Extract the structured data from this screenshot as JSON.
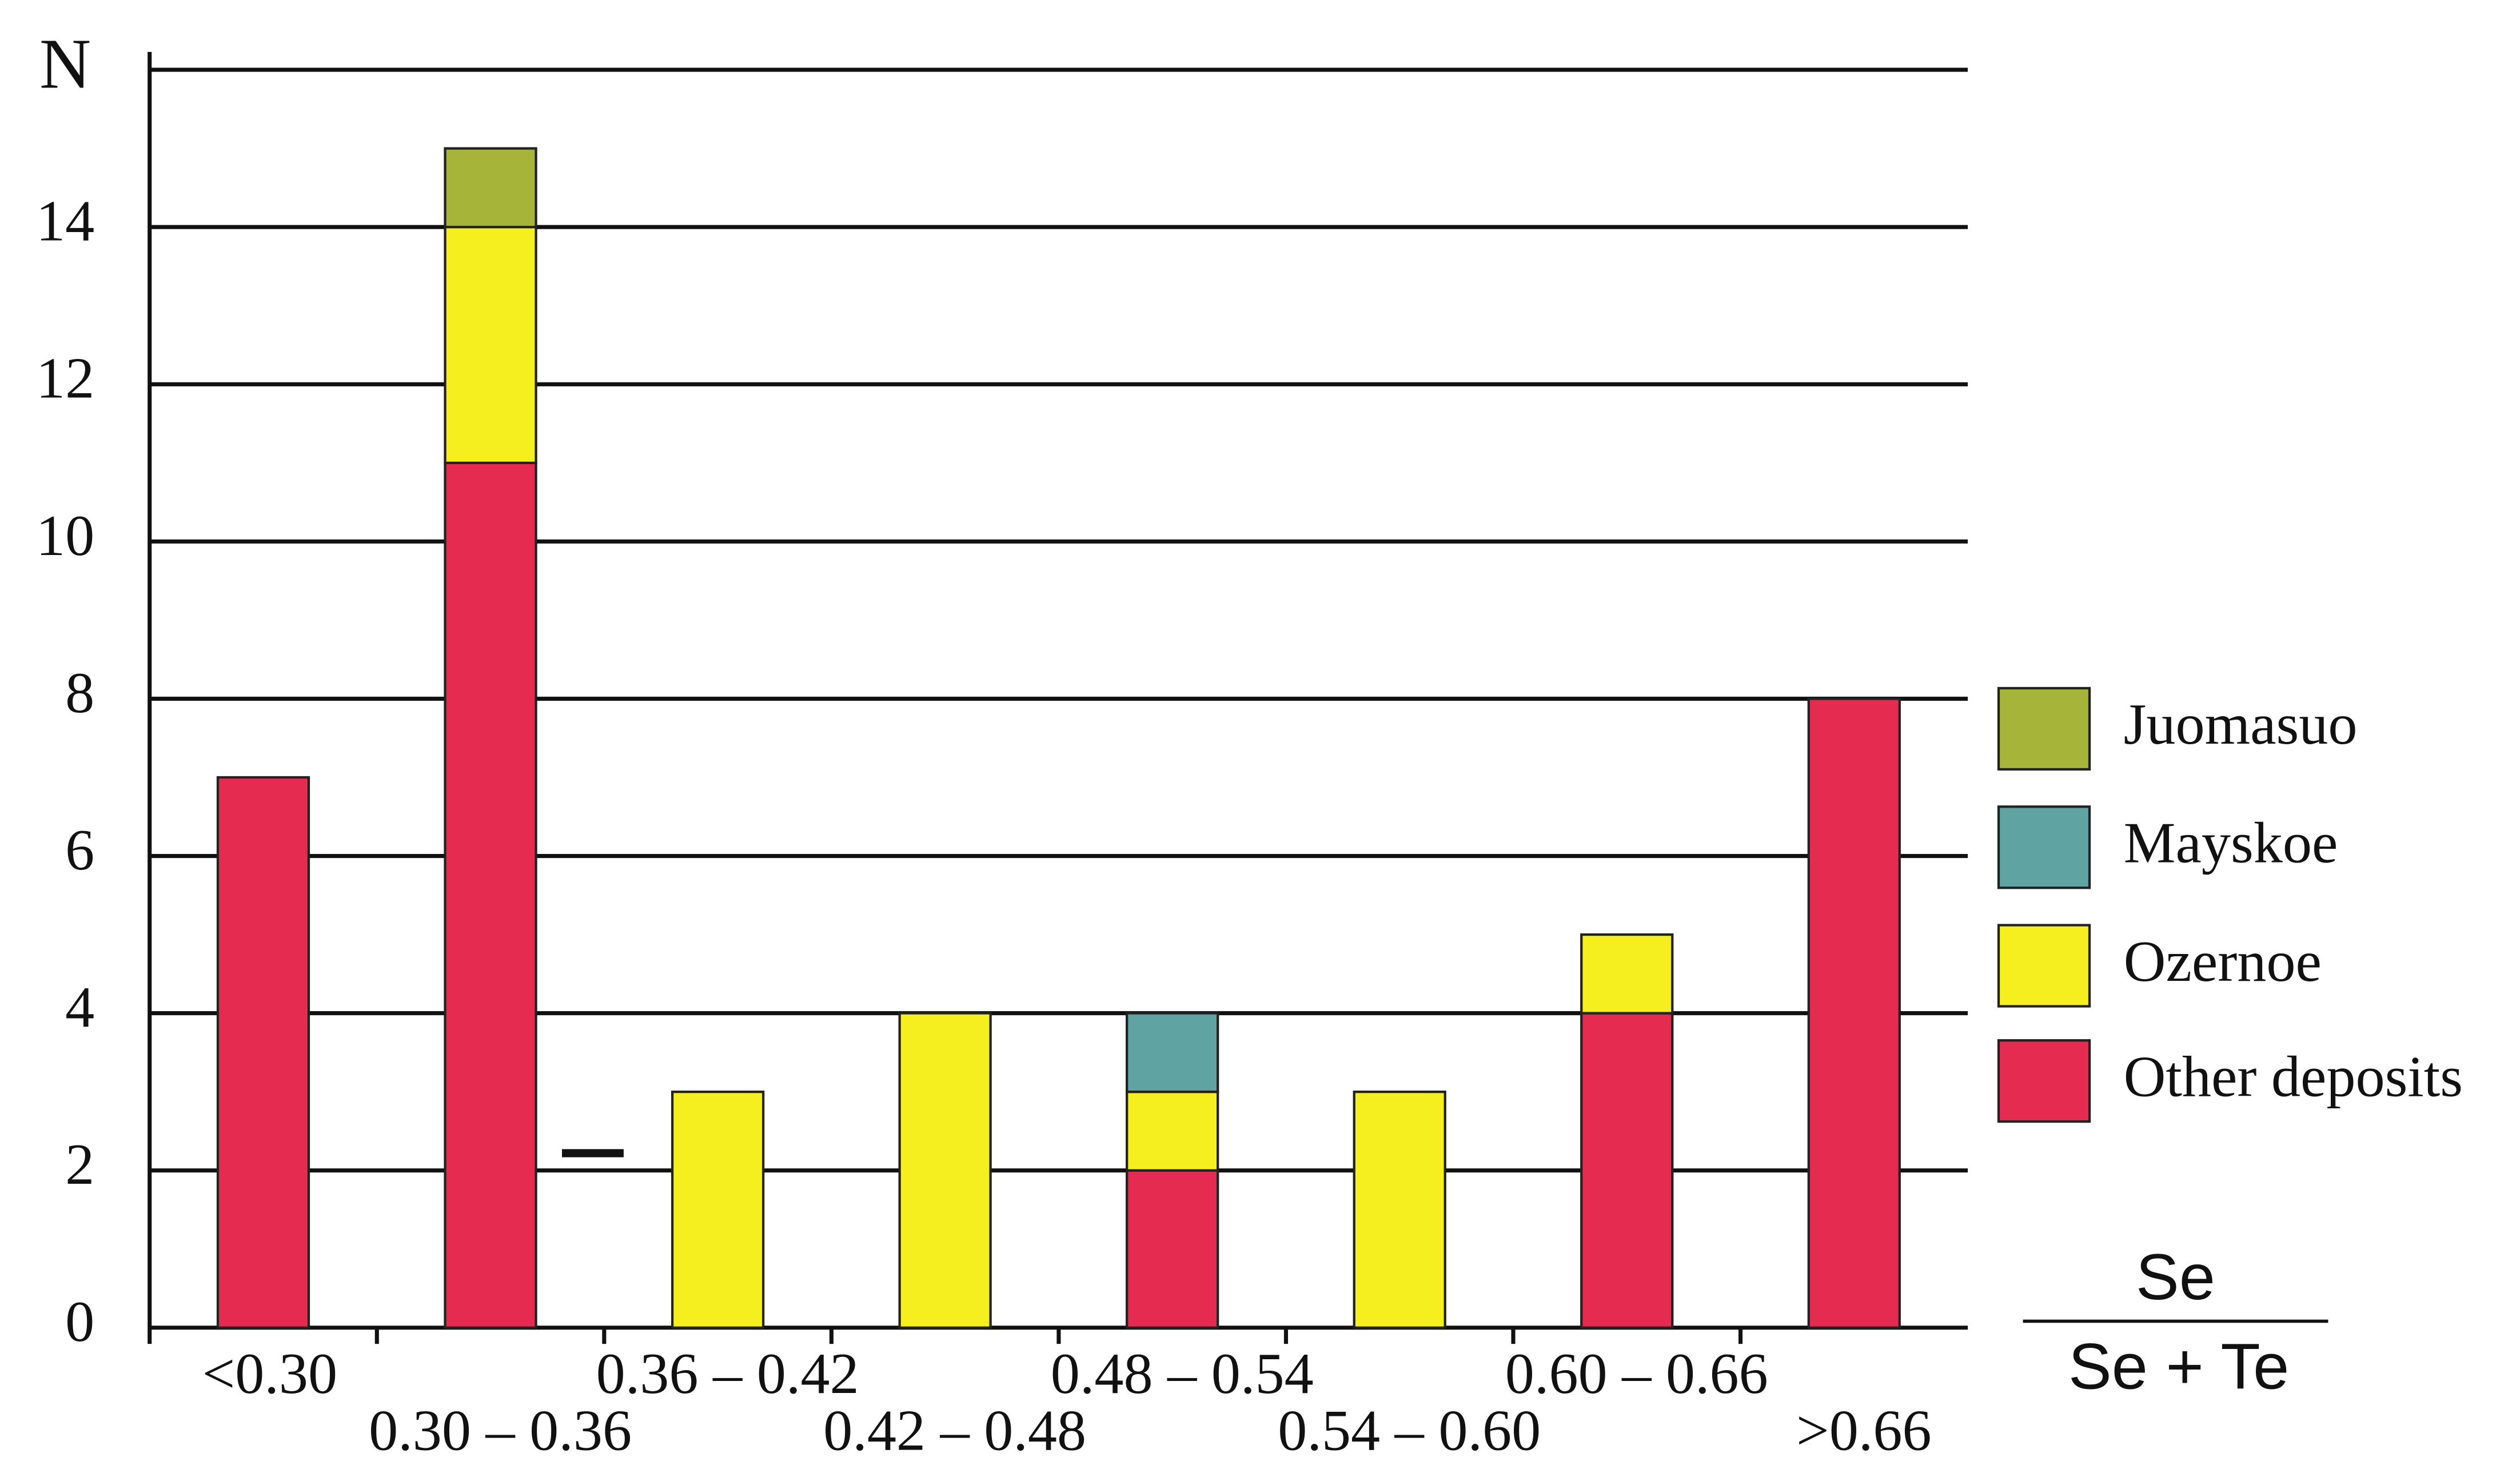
{
  "chart_data": {
    "type": "stacked_bar",
    "ylabel": "N",
    "xlabel_numerator": "Se",
    "xlabel_denominator": "Se + Te",
    "categories": [
      "<0.30",
      "0.30 – 0.36",
      "0.36 – 0.42",
      "0.42 – 0.48",
      "0.48 – 0.54",
      "0.54 – 0.60",
      "0.60 – 0.66",
      ">0.66"
    ],
    "series": [
      {
        "name": "Other deposits",
        "color": "#e52b50",
        "values": [
          7,
          11,
          0,
          0,
          2,
          0,
          4,
          8
        ]
      },
      {
        "name": "Ozernoe",
        "color": "#f5ef1f",
        "values": [
          0,
          3,
          3,
          4,
          1,
          3,
          1,
          0
        ]
      },
      {
        "name": "Mayskoe",
        "color": "#5fa3a3",
        "values": [
          0,
          0,
          0,
          0,
          1,
          0,
          0,
          0
        ]
      },
      {
        "name": "Juomasuo",
        "color": "#a7b43a",
        "values": [
          0,
          1,
          0,
          0,
          0,
          0,
          0,
          0
        ]
      }
    ],
    "ylim": [
      0,
      16
    ],
    "yticks": [
      0,
      2,
      4,
      6,
      8,
      10,
      12,
      14
    ],
    "grid": true,
    "legend": "right"
  }
}
